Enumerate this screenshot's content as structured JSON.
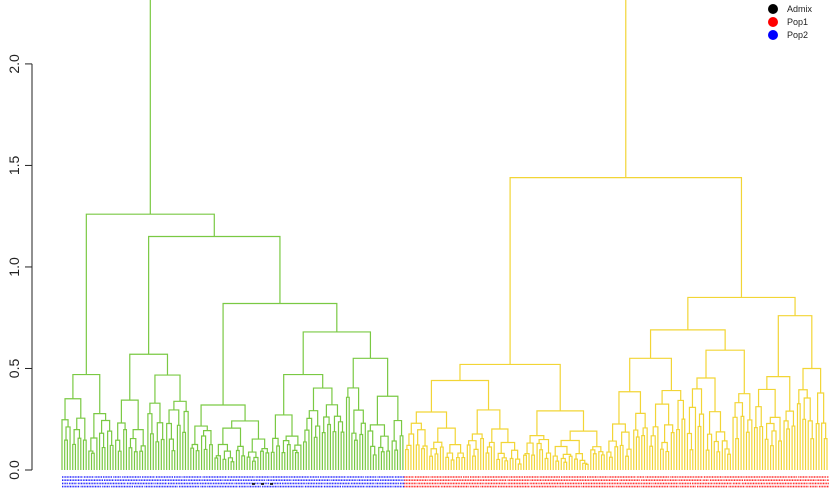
{
  "chart_data": {
    "type": "dendrogram",
    "y_axis": {
      "ticks": [
        0.0,
        0.5,
        1.0,
        1.5,
        2.0
      ],
      "tick_labels": [
        "0.0",
        "0.5",
        "1.0",
        "1.5",
        "2.0"
      ],
      "ylim": [
        0,
        2.3
      ]
    },
    "grid": false,
    "legend": {
      "placement": "top-right",
      "entries": [
        {
          "label": "Admix",
          "color": "#000000"
        },
        {
          "label": "Pop1",
          "color": "#ff0000"
        },
        {
          "label": "Pop2",
          "color": "#0000ff"
        }
      ]
    },
    "clusters": [
      {
        "color": "#7ac943",
        "leaf_fraction": 0.472,
        "leaf_population": "Pop2"
      },
      {
        "color": "#f2d536",
        "leaf_fraction": 0.528,
        "leaf_population": "Pop1"
      }
    ],
    "merge_heights": {
      "root": 2.33,
      "green": {
        "top": 1.26,
        "left_branch": 0.47,
        "right": 1.15,
        "right_left": 0.57,
        "right_right": 0.82,
        "rr_left": 0.32,
        "rr_right": 0.68,
        "rrr_left": 0.47,
        "rrr_right": 0.55
      },
      "yellow": {
        "top": 1.44,
        "left": 0.52,
        "right": 0.85,
        "right_left": 0.69,
        "right_right": 0.76,
        "rl_left": 0.55,
        "rl_right": 0.59,
        "rr_left": 0.46,
        "rr_right": 0.5
      }
    }
  }
}
